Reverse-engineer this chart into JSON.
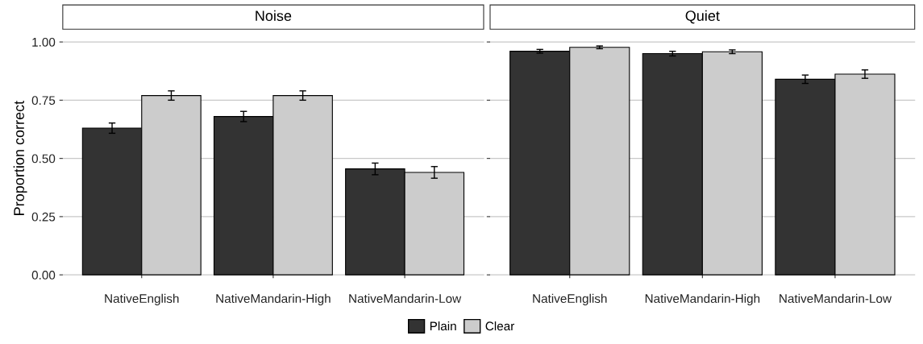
{
  "chart_data": [
    {
      "type": "bar",
      "title": "Noise",
      "ylabel": "Proportion correct",
      "categories": [
        "NativeEnglish",
        "NativeMandarin-High",
        "NativeMandarin-Low"
      ],
      "ylim": [
        0,
        1
      ],
      "yticks": [
        {
          "value": 0,
          "label": "0.00"
        },
        {
          "value": 0.25,
          "label": "0.25"
        },
        {
          "value": 0.5,
          "label": "0.50"
        },
        {
          "value": 0.75,
          "label": "0.75"
        },
        {
          "value": 1,
          "label": "1.00"
        }
      ],
      "grid": "y",
      "legend": "bottom",
      "series": [
        {
          "name": "Plain",
          "color": "#333333",
          "values": [
            0.63,
            0.68,
            0.455
          ],
          "errors": [
            0.022,
            0.022,
            0.025
          ]
        },
        {
          "name": "Clear",
          "color": "#cccccc",
          "values": [
            0.77,
            0.77,
            0.44
          ],
          "errors": [
            0.02,
            0.02,
            0.025
          ]
        }
      ]
    },
    {
      "type": "bar",
      "title": "Quiet",
      "categories": [
        "NativeEnglish",
        "NativeMandarin-High",
        "NativeMandarin-Low"
      ],
      "ylim": [
        0,
        1
      ],
      "yticks": [
        {
          "value": 0,
          "label": null
        },
        {
          "value": 0.25,
          "label": null
        },
        {
          "value": 0.5,
          "label": null
        },
        {
          "value": 0.75,
          "label": null
        },
        {
          "value": 1,
          "label": null
        }
      ],
      "grid": "y",
      "tick_labels": "x",
      "series": [
        {
          "color": "#333333",
          "values": [
            0.96,
            0.95,
            0.84
          ],
          "errors": [
            0.008,
            0.01,
            0.018
          ]
        },
        {
          "color": "#cccccc",
          "values": [
            0.977,
            0.958,
            0.862
          ],
          "errors": [
            0.006,
            0.008,
            0.018
          ]
        }
      ]
    }
  ]
}
